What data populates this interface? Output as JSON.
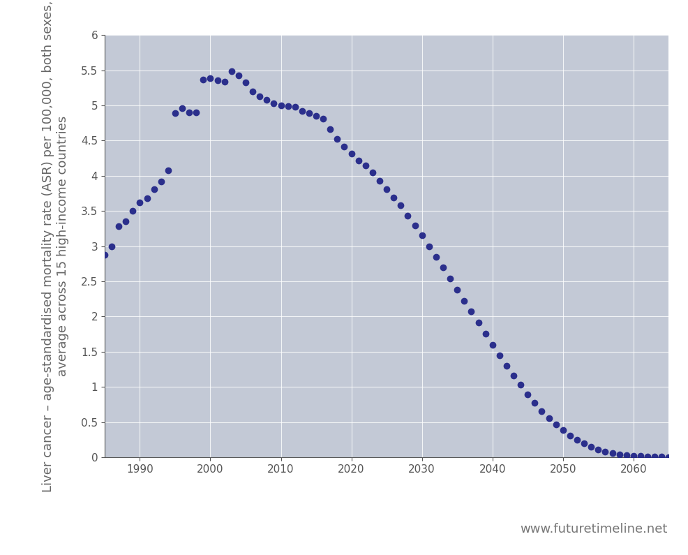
{
  "chart_data": {
    "type": "line",
    "y_label": "Liver cancer – age-standardised mortality rate (ASR) per 100,000, both sexes, average across 15 high-income countries",
    "source": "www.futuretimeline.net",
    "x": [
      1985,
      1986,
      1987,
      1988,
      1989,
      1990,
      1991,
      1992,
      1993,
      1994,
      1995,
      1996,
      1997,
      1998,
      1999,
      2000,
      2001,
      2002,
      2003,
      2004,
      2005,
      2006,
      2007,
      2008,
      2009,
      2010,
      2011,
      2012,
      2013,
      2014,
      2015,
      2016,
      2017,
      2018,
      2019,
      2020,
      2021,
      2022,
      2023,
      2024,
      2025,
      2026,
      2027,
      2028,
      2029,
      2030,
      2031,
      2032,
      2033,
      2034,
      2035,
      2036,
      2037,
      2038,
      2039,
      2040,
      2041,
      2042,
      2043,
      2044,
      2045,
      2046,
      2047,
      2048,
      2049,
      2050,
      2051,
      2052,
      2053,
      2054,
      2055,
      2056,
      2057,
      2058,
      2059,
      2060,
      2061,
      2062,
      2063,
      2064,
      2065
    ],
    "values": [
      2.88,
      3.0,
      3.28,
      3.35,
      3.5,
      3.62,
      3.68,
      3.81,
      3.92,
      4.08,
      4.89,
      4.96,
      4.9,
      4.9,
      5.37,
      5.39,
      5.36,
      5.34,
      5.49,
      5.43,
      5.33,
      5.2,
      5.13,
      5.08,
      5.03,
      5.0,
      4.99,
      4.98,
      4.92,
      4.89,
      4.85,
      4.81,
      4.66,
      4.52,
      4.41,
      4.31,
      4.22,
      4.15,
      4.05,
      3.93,
      3.81,
      3.69,
      3.58,
      3.43,
      3.29,
      3.15,
      3.0,
      2.85,
      2.7,
      2.54,
      2.38,
      2.22,
      2.07,
      1.91,
      1.76,
      1.6,
      1.45,
      1.3,
      1.16,
      1.03,
      0.89,
      0.77,
      0.66,
      0.56,
      0.47,
      0.39,
      0.31,
      0.25,
      0.2,
      0.15,
      0.11,
      0.08,
      0.06,
      0.04,
      0.03,
      0.02,
      0.02,
      0.01,
      0.01,
      0.01,
      0.0
    ],
    "color": "#2b2f8c",
    "marker": "o",
    "line_style": "none",
    "xlim": [
      1985,
      2065
    ],
    "xticks": [
      1990,
      2000,
      2010,
      2020,
      2030,
      2040,
      2050,
      2060
    ],
    "ylim": [
      0,
      6
    ],
    "yticks": [
      0,
      0.5,
      1,
      1.5,
      2,
      2.5,
      3,
      3.5,
      4,
      4.5,
      5,
      5.5,
      6
    ],
    "grid": true
  }
}
